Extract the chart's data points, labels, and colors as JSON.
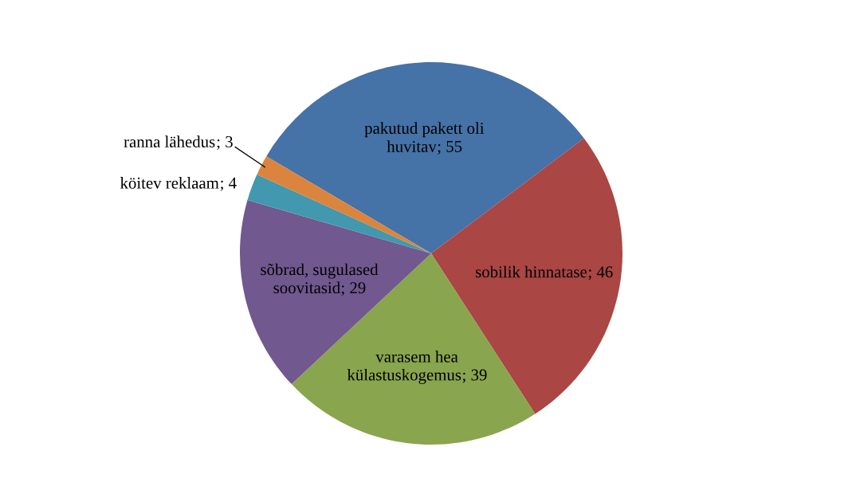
{
  "chart_data": {
    "type": "pie",
    "categories": [
      "pakutud pakett oli huvitav",
      "sobilik hinnatase",
      "varasem hea külastuskogemus",
      "sõbrad, sugulased soovitasid",
      "köitev reklaam",
      "ranna lähedus"
    ],
    "values": [
      55,
      46,
      39,
      29,
      4,
      3
    ],
    "colors": [
      "#4572a7",
      "#aa4643",
      "#89a54e",
      "#71588f",
      "#4198af",
      "#db843d"
    ],
    "value_labels": [
      "; 55",
      "; 46",
      "; 39",
      "; 29",
      "; 4",
      "; 3"
    ]
  }
}
